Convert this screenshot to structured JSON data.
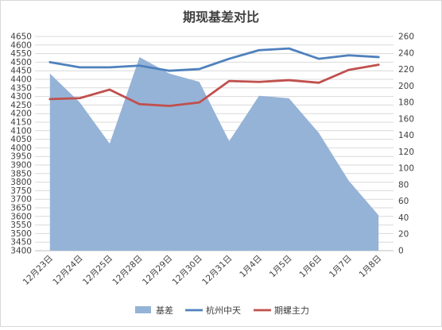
{
  "chart_data": {
    "type": "line",
    "title": "期现基差对比",
    "categories": [
      "12月23日",
      "12月24日",
      "12月25日",
      "12月28日",
      "12月29日",
      "12月30日",
      "12月31日",
      "1月4日",
      "1月5日",
      "1月6日",
      "1月7日",
      "1月8日"
    ],
    "left_axis": {
      "min": 3400,
      "max": 4650,
      "step": 50
    },
    "right_axis": {
      "min": 0,
      "max": 260,
      "step": 20
    },
    "grid": true,
    "legend_position": "bottom",
    "series": [
      {
        "name": "基差",
        "type": "area",
        "axis": "right",
        "color": "#95B3D7",
        "values": [
          215,
          180,
          130,
          235,
          215,
          205,
          133,
          188,
          185,
          143,
          85,
          43
        ]
      },
      {
        "name": "杭州中天",
        "type": "line",
        "axis": "left",
        "color": "#4F81BD",
        "values": [
          4500,
          4470,
          4470,
          4480,
          4450,
          4460,
          4520,
          4570,
          4580,
          4520,
          4540,
          4530
        ]
      },
      {
        "name": "期螺主力",
        "type": "line",
        "axis": "left",
        "color": "#C0504D",
        "values": [
          4285,
          4290,
          4340,
          4255,
          4245,
          4265,
          4390,
          4385,
          4395,
          4380,
          4455,
          4485
        ]
      }
    ]
  }
}
